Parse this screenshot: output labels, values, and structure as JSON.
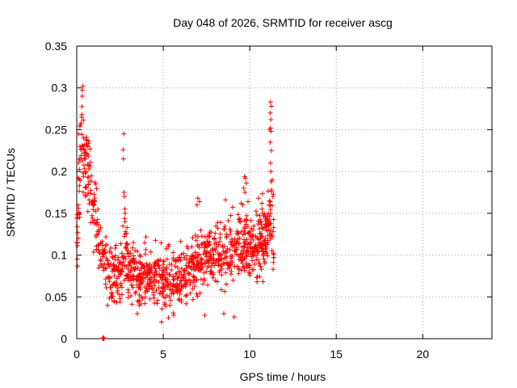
{
  "chart_data": {
    "type": "scatter",
    "title": "Day 048 of 2026, SRMTID for receiver ascg",
    "xlabel": "GPS time / hours",
    "ylabel": "SRMTID / TECUs",
    "xlim": [
      0,
      24
    ],
    "ylim": [
      0,
      0.35
    ],
    "xticks": [
      0,
      5,
      10,
      15,
      20
    ],
    "xtick_labels": [
      "0",
      "5",
      "10",
      "15",
      "20"
    ],
    "yticks": [
      0,
      0.05,
      0.1,
      0.15,
      0.2,
      0.25,
      0.3,
      0.35
    ],
    "ytick_labels": [
      "0",
      "0.05",
      "0.1",
      "0.15",
      "0.2",
      "0.25",
      "0.3",
      "0.35"
    ],
    "grid": true,
    "marker": "+",
    "color": "#ff0000",
    "anchors": [
      [
        0.0,
        0.13
      ],
      [
        0.1,
        0.15
      ],
      [
        0.2,
        0.2
      ],
      [
        0.3,
        0.24
      ],
      [
        0.4,
        0.22
      ],
      [
        0.5,
        0.2
      ],
      [
        0.6,
        0.21
      ],
      [
        0.7,
        0.2
      ],
      [
        0.8,
        0.19
      ],
      [
        0.9,
        0.16
      ],
      [
        1.0,
        0.15
      ],
      [
        1.1,
        0.14
      ],
      [
        1.2,
        0.13
      ],
      [
        1.3,
        0.12
      ],
      [
        1.4,
        0.11
      ],
      [
        1.6,
        0.09
      ],
      [
        1.8,
        0.078
      ],
      [
        2.0,
        0.072
      ],
      [
        2.2,
        0.074
      ],
      [
        2.5,
        0.075
      ],
      [
        2.7,
        0.095
      ],
      [
        2.8,
        0.11
      ],
      [
        3.0,
        0.08
      ],
      [
        3.5,
        0.075
      ],
      [
        4.0,
        0.075
      ],
      [
        4.5,
        0.074
      ],
      [
        5.0,
        0.07
      ],
      [
        5.5,
        0.072
      ],
      [
        6.0,
        0.073
      ],
      [
        6.5,
        0.08
      ],
      [
        7.0,
        0.09
      ],
      [
        7.5,
        0.1
      ],
      [
        8.0,
        0.1
      ],
      [
        8.5,
        0.105
      ],
      [
        9.0,
        0.11
      ],
      [
        9.5,
        0.115
      ],
      [
        10.0,
        0.11
      ],
      [
        10.5,
        0.115
      ],
      [
        10.8,
        0.12
      ],
      [
        11.0,
        0.125
      ],
      [
        11.2,
        0.15
      ],
      [
        11.4,
        0.12
      ]
    ],
    "spread": [
      [
        0.0,
        0.05
      ],
      [
        1.0,
        0.045
      ],
      [
        1.5,
        0.035
      ],
      [
        2.5,
        0.035
      ],
      [
        5.0,
        0.035
      ],
      [
        7.0,
        0.035
      ],
      [
        9.0,
        0.04
      ],
      [
        11.0,
        0.04
      ],
      [
        11.4,
        0.05
      ]
    ],
    "sample_count": 1150,
    "outliers": [
      [
        0.35,
        0.302
      ],
      [
        0.32,
        0.29
      ],
      [
        0.3,
        0.268
      ],
      [
        0.28,
        0.265
      ],
      [
        0.25,
        0.258
      ],
      [
        0.22,
        0.256
      ],
      [
        0.18,
        0.254
      ],
      [
        0.3,
        0.244
      ],
      [
        0.4,
        0.24
      ],
      [
        0.55,
        0.238
      ],
      [
        0.7,
        0.236
      ],
      [
        0.65,
        0.23
      ],
      [
        0.45,
        0.232
      ],
      [
        0.1,
        0.245
      ],
      [
        2.72,
        0.245
      ],
      [
        2.68,
        0.226
      ],
      [
        2.7,
        0.215
      ],
      [
        2.73,
        0.175
      ],
      [
        2.75,
        0.17
      ],
      [
        2.78,
        0.155
      ],
      [
        2.8,
        0.15
      ],
      [
        11.2,
        0.283
      ],
      [
        11.25,
        0.278
      ],
      [
        11.18,
        0.27
      ],
      [
        11.22,
        0.262
      ],
      [
        11.2,
        0.252
      ],
      [
        11.15,
        0.25
      ],
      [
        11.23,
        0.248
      ],
      [
        11.18,
        0.235
      ],
      [
        11.25,
        0.225
      ],
      [
        11.2,
        0.21
      ],
      [
        11.22,
        0.2
      ],
      [
        11.3,
        0.19
      ],
      [
        9.7,
        0.194
      ],
      [
        9.75,
        0.192
      ],
      [
        9.8,
        0.186
      ],
      [
        9.65,
        0.18
      ],
      [
        9.72,
        0.175
      ],
      [
        9.9,
        0.164
      ],
      [
        9.6,
        0.16
      ],
      [
        9.5,
        0.162
      ],
      [
        10.5,
        0.168
      ],
      [
        10.7,
        0.162
      ],
      [
        8.6,
        0.166
      ],
      [
        7.0,
        0.168
      ],
      [
        7.1,
        0.164
      ],
      [
        6.95,
        0.16
      ],
      [
        1.5,
        0.0
      ],
      [
        1.52,
        0.001
      ],
      [
        1.54,
        0.0
      ],
      [
        1.56,
        0.001
      ],
      [
        1.58,
        0.0
      ],
      [
        4.9,
        0.02
      ],
      [
        5.3,
        0.025
      ],
      [
        5.6,
        0.028
      ],
      [
        3.5,
        0.03
      ],
      [
        7.4,
        0.028
      ],
      [
        8.5,
        0.03
      ],
      [
        9.1,
        0.026
      ]
    ]
  }
}
